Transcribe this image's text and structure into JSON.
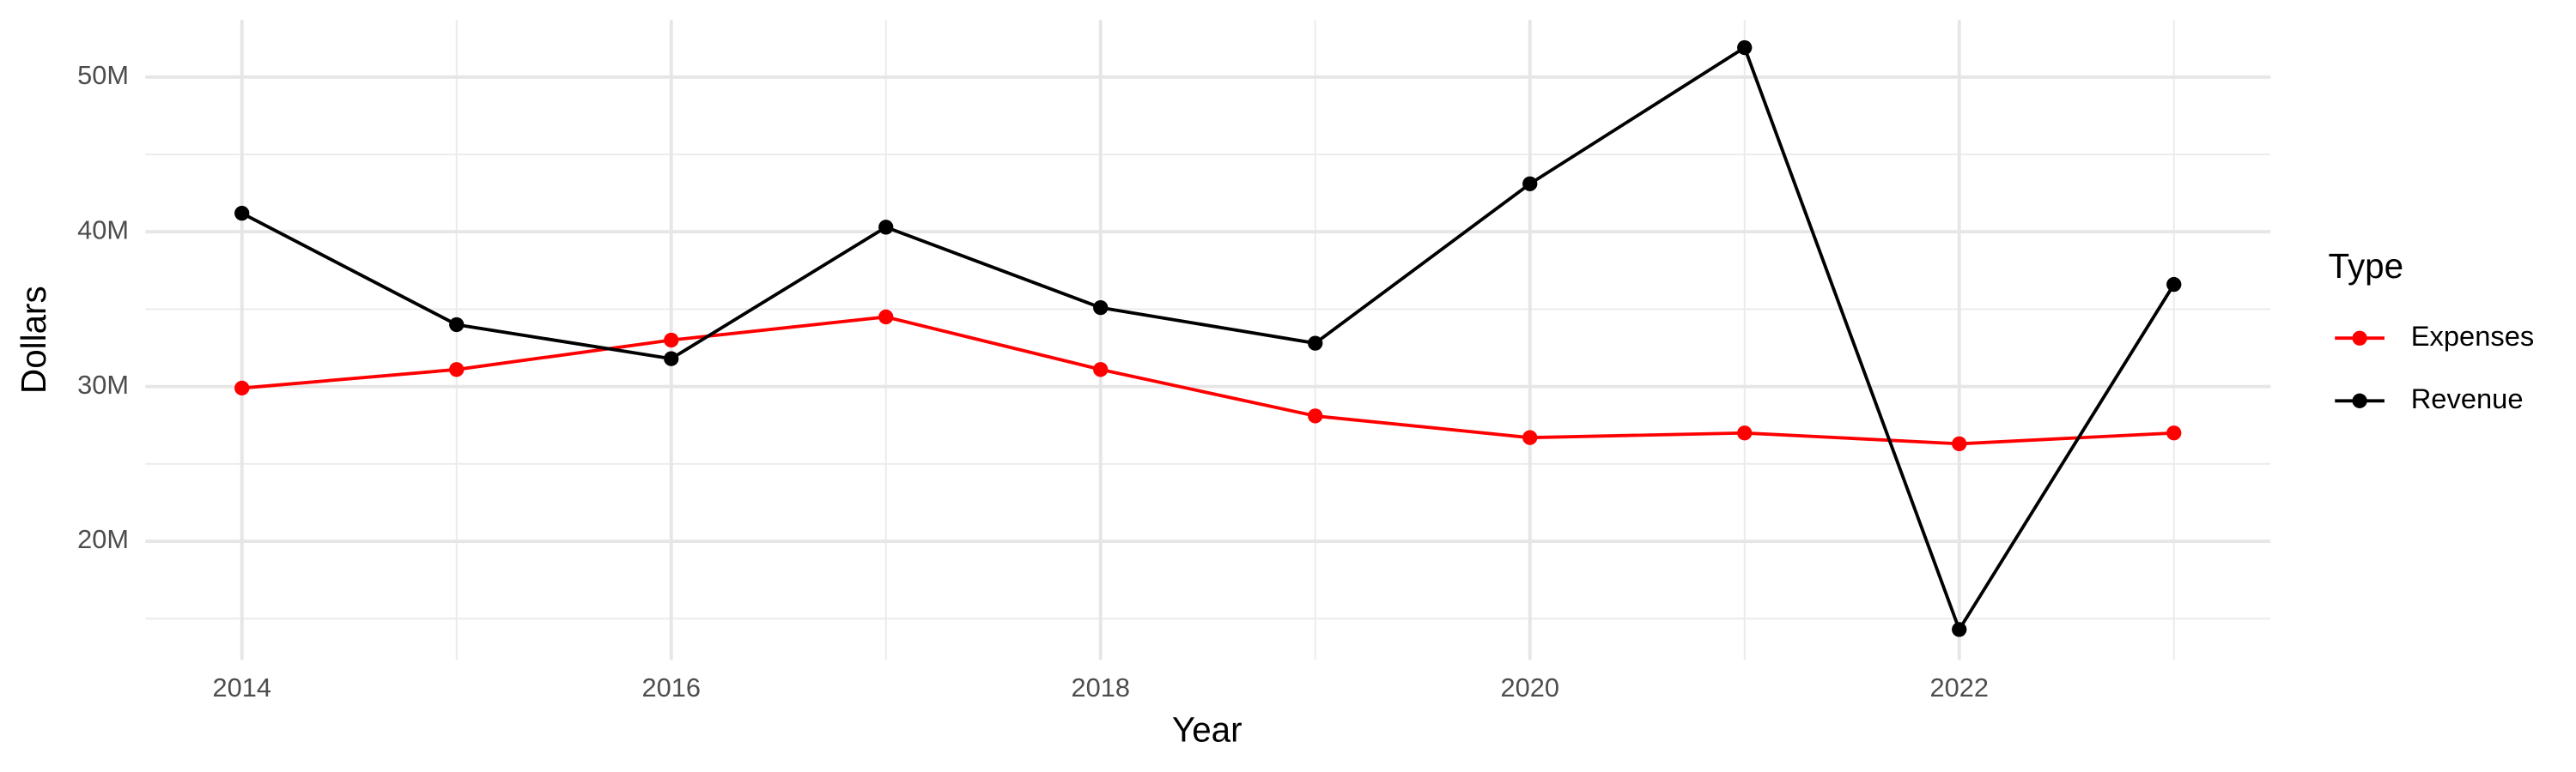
{
  "chart_data": {
    "type": "line",
    "x_label": "Year",
    "y_label": "Dollars",
    "x": [
      2014,
      2015,
      2016,
      2017,
      2018,
      2019,
      2020,
      2021,
      2022,
      2023
    ],
    "series": [
      {
        "name": "Expenses",
        "color": "#ff0000",
        "values": [
          29900000,
          31100000,
          33000000,
          34500000,
          31100000,
          28100000,
          26700000,
          27000000,
          26300000,
          27000000
        ]
      },
      {
        "name": "Revenue",
        "color": "#000000",
        "values": [
          41200000,
          34000000,
          31800000,
          40300000,
          35100000,
          32800000,
          43100000,
          51900000,
          14300000,
          36600000
        ]
      }
    ],
    "xlim": [
      2013.55,
      2023.45
    ],
    "xticks": [
      2014,
      2016,
      2018,
      2020,
      2022
    ],
    "ylim": [
      12340000,
      53700000
    ],
    "yticks": [
      {
        "value": 20000000,
        "label": "20M"
      },
      {
        "value": 30000000,
        "label": "30M"
      },
      {
        "value": 40000000,
        "label": "40M"
      },
      {
        "value": 50000000,
        "label": "50M"
      }
    ],
    "grid": true,
    "legend_title": "Type",
    "legend_position": "right"
  }
}
